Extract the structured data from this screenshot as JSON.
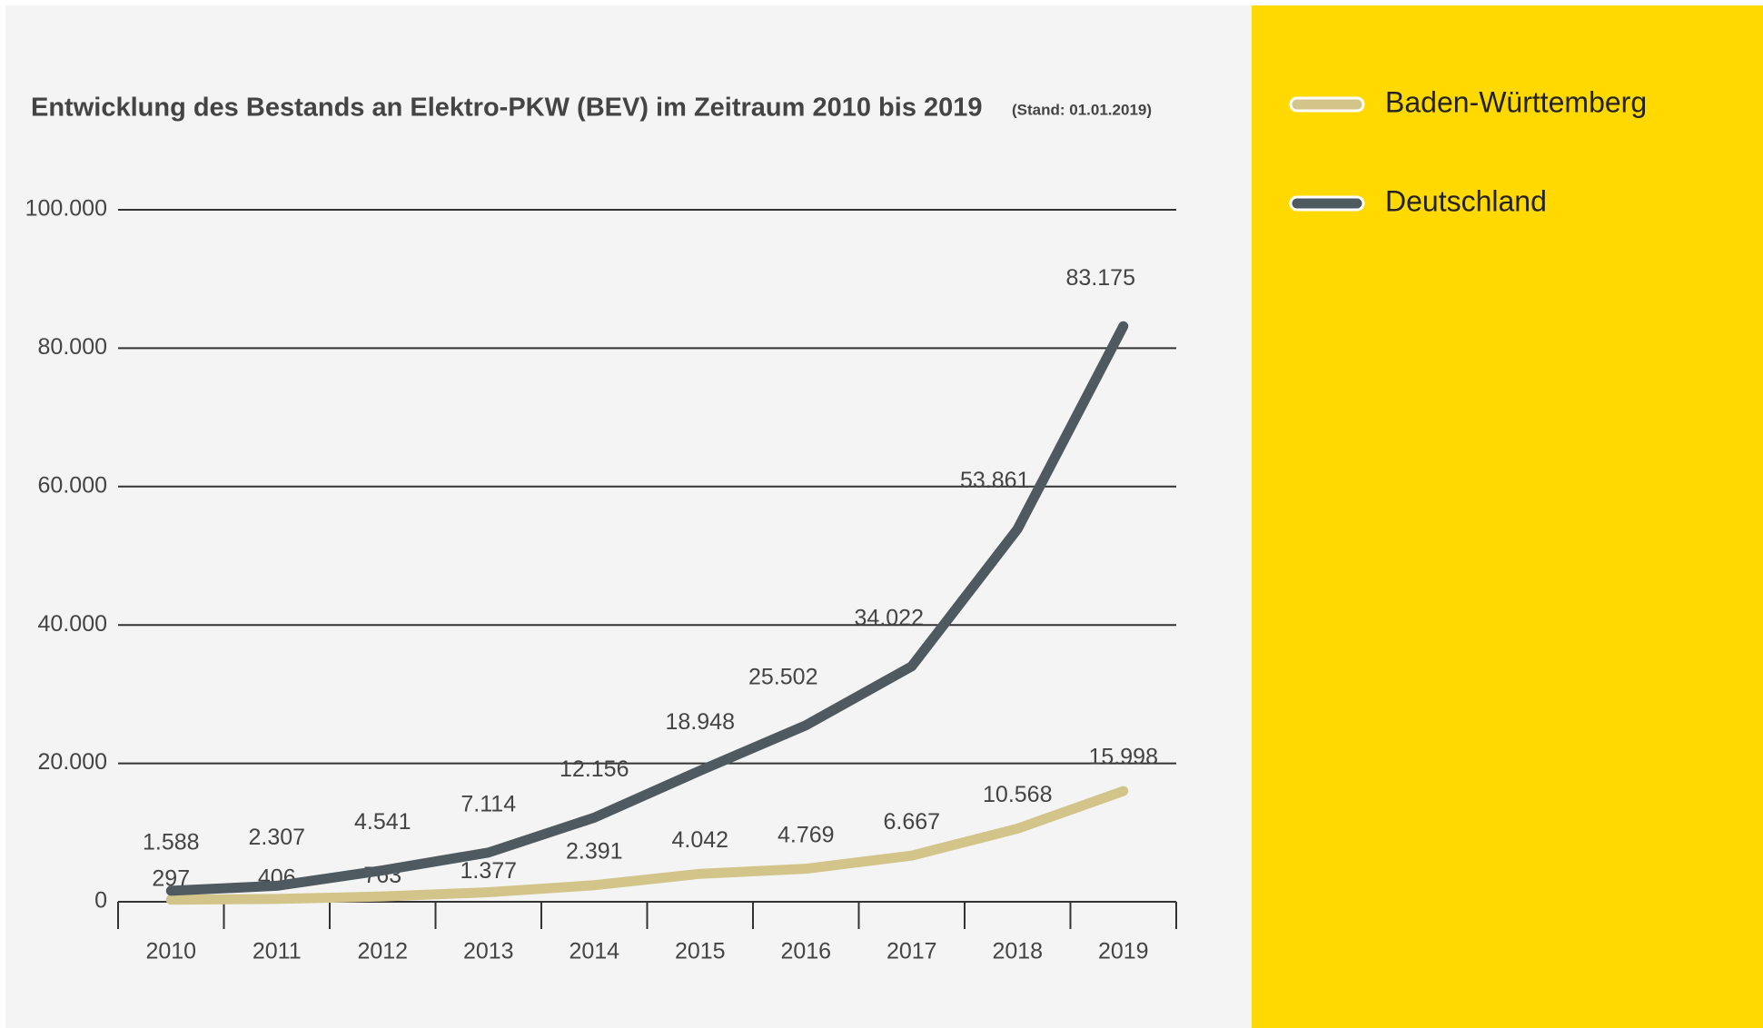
{
  "chart_data": {
    "type": "line",
    "title": "Entwicklung des Bestands an Elektro-PKW (BEV) im Zeitraum 2010 bis 2019",
    "subtitle": "(Stand: 01.01.2019)",
    "categories": [
      "2010",
      "2011",
      "2012",
      "2013",
      "2014",
      "2015",
      "2016",
      "2017",
      "2018",
      "2019"
    ],
    "series": [
      {
        "name": "Baden-Württemberg",
        "color": "#d3c48a",
        "values": [
          297,
          406,
          763,
          1377,
          2391,
          4042,
          4769,
          6667,
          10568,
          15998
        ],
        "value_labels": [
          "297",
          "406",
          "763",
          "1.377",
          "2.391",
          "4.042",
          "4.769",
          "6.667",
          "10.568",
          "15.998"
        ]
      },
      {
        "name": "Deutschland",
        "color": "#4e5960",
        "values": [
          1588,
          2307,
          4541,
          7114,
          12156,
          18948,
          25502,
          34022,
          53861,
          83175
        ],
        "value_labels": [
          "1.588",
          "2.307",
          "4.541",
          "7.114",
          "12.156",
          "18.948",
          "25.502",
          "34.022",
          "53.861",
          "83.175"
        ]
      }
    ],
    "ylim": [
      0,
      100000
    ],
    "yticks": [
      0,
      {
        "value": 20000,
        "label": "20.000"
      },
      {
        "value": 40000,
        "label": "40.000"
      },
      {
        "value": 60000,
        "label": "60.000"
      },
      {
        "value": 80000,
        "label": "80.000"
      },
      {
        "value": 100000,
        "label": "100.000"
      }
    ],
    "grid": true,
    "legend": "right"
  }
}
